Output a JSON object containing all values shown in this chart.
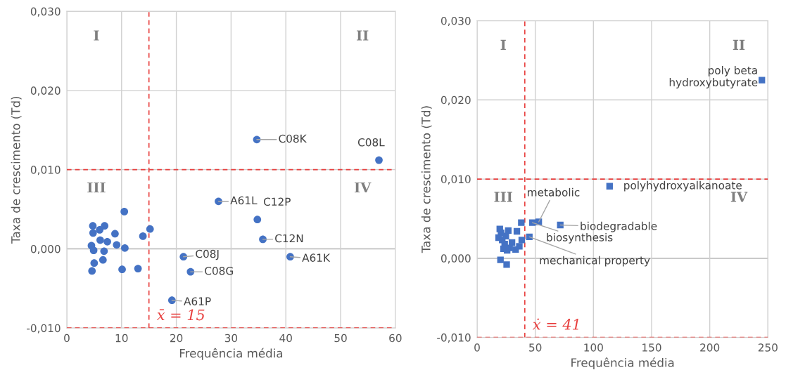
{
  "chart_data": [
    {
      "type": "scatter",
      "xlabel": "Frequência média",
      "ylabel": "Taxa de crescimento (Td)",
      "marker": "circle",
      "grid": true,
      "xlim": [
        0,
        60
      ],
      "xticks": [
        0,
        10,
        20,
        30,
        40,
        50,
        60
      ],
      "ylim": [
        -0.01,
        0.03
      ],
      "yticks": [
        {
          "value": -0.01,
          "label": "-0,010"
        },
        {
          "value": 0,
          "label": "0,000"
        },
        {
          "value": 0.01,
          "label": "0,010"
        },
        {
          "value": 0.02,
          "label": "0,020"
        },
        {
          "value": 0.03,
          "label": "0,030"
        }
      ],
      "series": [
        {
          "color": "#4472c4",
          "x": [
            10.5,
            4.75,
            6.9,
            4.8,
            6.0,
            8.8,
            15.2,
            13.9,
            6.1,
            7.4,
            9.1,
            10.6,
            4.5,
            4.9,
            6.8,
            5.0,
            6.6,
            4.6,
            10.1,
            13.0,
            34.7,
            57.0,
            27.7,
            34.8,
            35.8,
            40.8,
            21.3,
            22.6,
            19.2
          ],
          "values": [
            0.0047,
            0.0029,
            0.0029,
            0.002,
            0.0024,
            0.0019,
            0.0025,
            0.0016,
            0.0011,
            0.0009,
            0.0005,
            0.0001,
            0.0004,
            -0.0002,
            -0.0003,
            -0.0018,
            -0.0014,
            -0.0028,
            -0.0026,
            -0.0025,
            0.0138,
            0.0112,
            0.006,
            0.0037,
            0.0012,
            -0.001,
            -0.001,
            -0.0029,
            -0.0065
          ]
        }
      ],
      "ref_lines": [
        {
          "axis": "x",
          "value": 15,
          "label": "x̄ = 15",
          "color": "#e8403f",
          "line_style": "dashed"
        },
        {
          "axis": "y",
          "value": 0.01,
          "color": "#e8403f",
          "line_style": "dashed"
        },
        {
          "axis": "y",
          "value": -0.01,
          "color": "#e8403f",
          "line_style": "dashed"
        }
      ],
      "annotations": [
        "I",
        "II",
        "III",
        "IV",
        {
          "text": "C08K",
          "x": 34.7,
          "y": 0.0138
        },
        {
          "text": "C08L",
          "x": 57.0,
          "y": 0.0112
        },
        {
          "text": "A61L",
          "x": 27.7,
          "y": 0.006
        },
        {
          "text": "C12P",
          "x": 34.8,
          "y": 0.0037
        },
        {
          "text": "C12N",
          "x": 35.8,
          "y": 0.0012
        },
        {
          "text": "A61K",
          "x": 40.8,
          "y": -0.001
        },
        {
          "text": "C08J",
          "x": 21.3,
          "y": -0.001
        },
        {
          "text": "C08G",
          "x": 22.6,
          "y": -0.0029
        },
        {
          "text": "A61P",
          "x": 19.2,
          "y": -0.0065
        }
      ]
    },
    {
      "type": "scatter",
      "xlabel": "Frequência média",
      "ylabel": "Taxa de crescimento (Td)",
      "marker": "square",
      "grid": true,
      "xlim": [
        0,
        250
      ],
      "xticks": [
        0,
        50,
        100,
        150,
        200,
        250
      ],
      "ylim": [
        -0.01,
        0.03
      ],
      "yticks": [
        {
          "value": -0.01,
          "label": "-0,010"
        },
        {
          "value": 0,
          "label": "0,000"
        },
        {
          "value": 0.01,
          "label": "0,010"
        },
        {
          "value": 0.02,
          "label": "0,020"
        },
        {
          "value": 0.03,
          "label": "0,030"
        }
      ],
      "series": [
        {
          "color": "#4472c4",
          "x": [
            38,
            19.5,
            26.8,
            34.2,
            20.6,
            24.7,
            18.5,
            21.6,
            23.7,
            30,
            27.9,
            33.1,
            36.3,
            38.4,
            25.8,
            22.7,
            20.1,
            25.4,
            244.8,
            113.9,
            71.5,
            53,
            47.5,
            44.9
          ],
          "values": [
            0.0045,
            0.0037,
            0.0035,
            0.0034,
            0.0032,
            0.0028,
            0.0026,
            0.0023,
            0.0018,
            0.002,
            0.0013,
            0.0011,
            0.0015,
            0.0023,
            0.001,
            0.0012,
            -0.0002,
            -0.0008,
            0.0225,
            0.0091,
            0.0042,
            0.0046,
            0.0045,
            0.0027
          ]
        }
      ],
      "ref_lines": [
        {
          "axis": "x",
          "value": 41,
          "label": "ẋ = 41",
          "color": "#e8403f",
          "line_style": "dashed"
        },
        {
          "axis": "y",
          "value": 0.01,
          "color": "#e8403f",
          "line_style": "dashed"
        },
        {
          "axis": "y",
          "value": -0.01,
          "color": "#e8403f",
          "line_style": "dashed"
        }
      ],
      "annotations": [
        "I",
        "II",
        "III",
        "IV",
        {
          "text": "poly beta\nhydroxybutyrate",
          "x": 244.8,
          "y": 0.0225
        },
        {
          "text": "polyhydroxyalkanoate",
          "x": 113.9,
          "y": 0.0091
        },
        {
          "text": "biodegradable",
          "x": 71.5,
          "y": 0.0042
        },
        {
          "text": "metabolic",
          "x": 53,
          "y": 0.0046
        },
        {
          "text": "biosynthesis",
          "x": 47.5,
          "y": 0.0045
        },
        {
          "text": "mechanical property",
          "x": 44.9,
          "y": 0.0027
        }
      ]
    }
  ]
}
